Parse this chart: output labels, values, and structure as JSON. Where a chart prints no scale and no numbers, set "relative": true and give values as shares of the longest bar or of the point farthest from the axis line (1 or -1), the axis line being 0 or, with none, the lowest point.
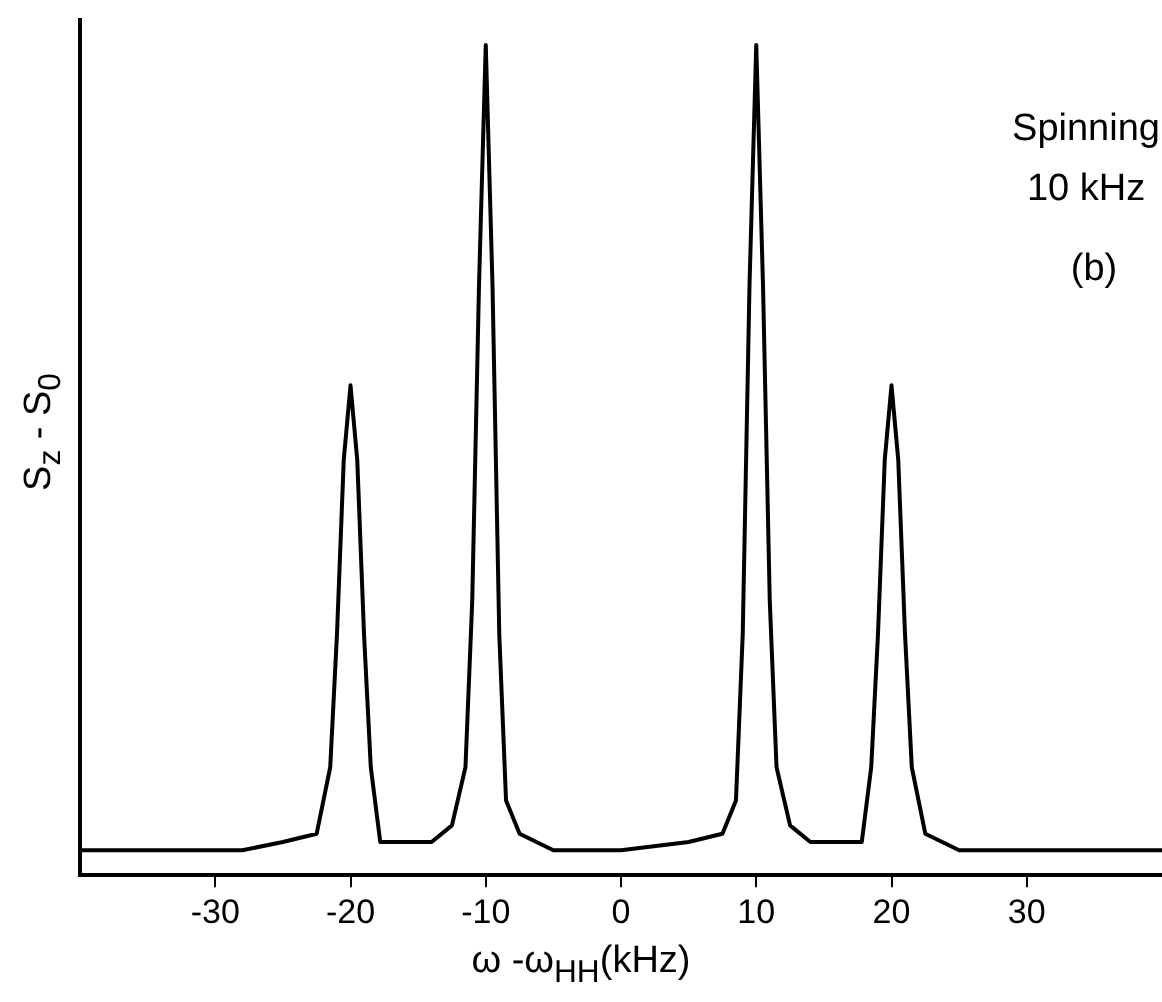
{
  "chart_data": {
    "type": "line",
    "relative": true,
    "xlabel": "ω -ω$_{HH}$(kHz)",
    "ylabel": "S$_{z}$ - S$_{0}$",
    "annotations": [
      "Spinning",
      "10 kHz",
      "(b)"
    ],
    "xlim": [
      -40,
      40
    ],
    "xticks": [
      -30,
      -20,
      -10,
      0,
      10,
      20,
      30
    ],
    "grid": false,
    "legend": false,
    "marker": "none",
    "line_style": "solid",
    "x": [
      -40,
      -32,
      -28,
      -25,
      -22.5,
      -21.5,
      -21,
      -20.5,
      -20,
      -19.5,
      -19,
      -18.5,
      -17.8,
      -16,
      -14,
      -12.5,
      -11.5,
      -11,
      -10.5,
      -10,
      -9.5,
      -9,
      -8.5,
      -7.5,
      -5,
      0,
      5,
      7.5,
      8.5,
      9,
      9.5,
      10,
      10.5,
      11,
      11.5,
      12.5,
      14,
      16,
      17.8,
      18.5,
      19,
      19.5,
      20,
      20.5,
      21,
      21.5,
      22.5,
      25,
      28,
      32,
      40
    ],
    "series": [
      {
        "color": "#000000",
        "values": [
          0.03,
          0.03,
          0.03,
          0.04,
          0.05,
          0.13,
          0.29,
          0.5,
          0.59,
          0.5,
          0.29,
          0.13,
          0.04,
          0.04,
          0.04,
          0.06,
          0.13,
          0.33,
          0.71,
          1,
          0.71,
          0.29,
          0.09,
          0.05,
          0.03,
          0.03,
          0.04,
          0.05,
          0.09,
          0.29,
          0.71,
          1,
          0.71,
          0.33,
          0.13,
          0.06,
          0.04,
          0.04,
          0.04,
          0.13,
          0.29,
          0.5,
          0.59,
          0.5,
          0.29,
          0.13,
          0.05,
          0.03,
          0.03,
          0.03,
          0.03
        ]
      }
    ]
  }
}
